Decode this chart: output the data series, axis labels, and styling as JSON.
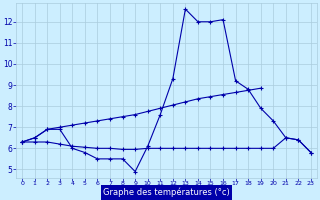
{
  "xlabel": "Graphe des températures (°c)",
  "bg_color": "#cceeff",
  "grid_color": "#aaccdd",
  "line_color": "#0000aa",
  "bar_color": "#0000aa",
  "hours": [
    0,
    1,
    2,
    3,
    4,
    5,
    6,
    7,
    8,
    9,
    10,
    11,
    12,
    13,
    14,
    15,
    16,
    17,
    18,
    19,
    20,
    21,
    22,
    23
  ],
  "temp_main": [
    6.3,
    6.5,
    6.9,
    6.9,
    6.0,
    5.8,
    5.5,
    5.5,
    5.5,
    4.9,
    6.1,
    7.6,
    9.3,
    12.6,
    12.0,
    12.0,
    12.1,
    9.2,
    null,
    null,
    null,
    null,
    null,
    null
  ],
  "temp_upper": [
    6.3,
    6.5,
    6.9,
    7.0,
    7.1,
    7.2,
    7.3,
    7.4,
    7.5,
    7.6,
    7.75,
    7.9,
    8.05,
    8.2,
    8.35,
    8.45,
    8.55,
    8.65,
    8.75,
    8.85,
    null,
    null,
    null,
    null
  ],
  "temp_lower": [
    6.3,
    6.3,
    6.3,
    6.2,
    6.1,
    6.05,
    6.0,
    6.0,
    5.95,
    5.95,
    6.0,
    6.0,
    6.0,
    6.0,
    6.0,
    6.0,
    6.0,
    6.0,
    6.0,
    6.0,
    6.0,
    6.5,
    6.4,
    5.8
  ],
  "temp_right": [
    null,
    null,
    null,
    null,
    null,
    null,
    null,
    null,
    null,
    null,
    null,
    null,
    null,
    null,
    null,
    null,
    null,
    null,
    8.8,
    7.9,
    7.3,
    6.5,
    6.4,
    5.8
  ],
  "ylim": [
    4.6,
    12.9
  ],
  "yticks": [
    5,
    6,
    7,
    8,
    9,
    10,
    11,
    12
  ],
  "xlim": [
    -0.5,
    23.5
  ],
  "xticks": [
    0,
    1,
    2,
    3,
    4,
    5,
    6,
    7,
    8,
    9,
    10,
    11,
    12,
    13,
    14,
    15,
    16,
    17,
    18,
    19,
    20,
    21,
    22,
    23
  ],
  "xticklabels": [
    "0",
    "1",
    "2",
    "3",
    "4",
    "5",
    "6",
    "7",
    "8",
    "9",
    "10",
    "11",
    "12",
    "13",
    "14",
    "15",
    "16",
    "17",
    "18",
    "19",
    "20",
    "21",
    "22",
    "23"
  ]
}
